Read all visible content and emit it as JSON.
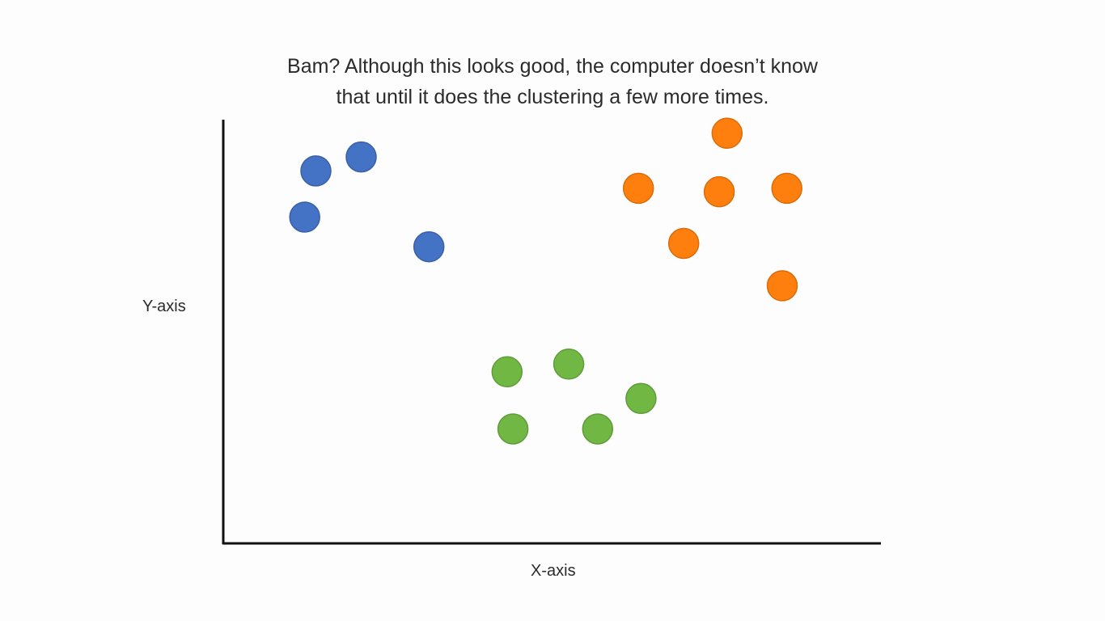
{
  "chart_data": {
    "type": "scatter",
    "title": "Bam? Although this looks good, the computer doesn’t know that until it does the clustering a few more times.",
    "title_lines": [
      "Bam? Although this looks good, the computer doesn’t know",
      "that until it does the clustering a few more times."
    ],
    "xlabel": "X-axis",
    "ylabel": "Y-axis",
    "xlim": [
      0,
      100
    ],
    "ylim": [
      0,
      100
    ],
    "grid": false,
    "legend": "none",
    "series": [
      {
        "color": "#4472c4",
        "points": [
          {
            "x": 14.1,
            "y": 87.9
          },
          {
            "x": 21.0,
            "y": 91.2
          },
          {
            "x": 12.4,
            "y": 77.0
          },
          {
            "x": 31.3,
            "y": 70.0
          }
        ]
      },
      {
        "color": "#ff7f0e",
        "points": [
          {
            "x": 76.7,
            "y": 96.8
          },
          {
            "x": 63.2,
            "y": 83.8
          },
          {
            "x": 75.5,
            "y": 83.0
          },
          {
            "x": 85.8,
            "y": 83.8
          },
          {
            "x": 70.1,
            "y": 70.8
          },
          {
            "x": 85.1,
            "y": 60.8
          }
        ]
      },
      {
        "color": "#70b843",
        "points": [
          {
            "x": 43.2,
            "y": 40.5
          },
          {
            "x": 52.6,
            "y": 42.3
          },
          {
            "x": 63.6,
            "y": 34.2
          },
          {
            "x": 44.1,
            "y": 27.0
          },
          {
            "x": 57.0,
            "y": 27.0
          }
        ]
      }
    ]
  }
}
